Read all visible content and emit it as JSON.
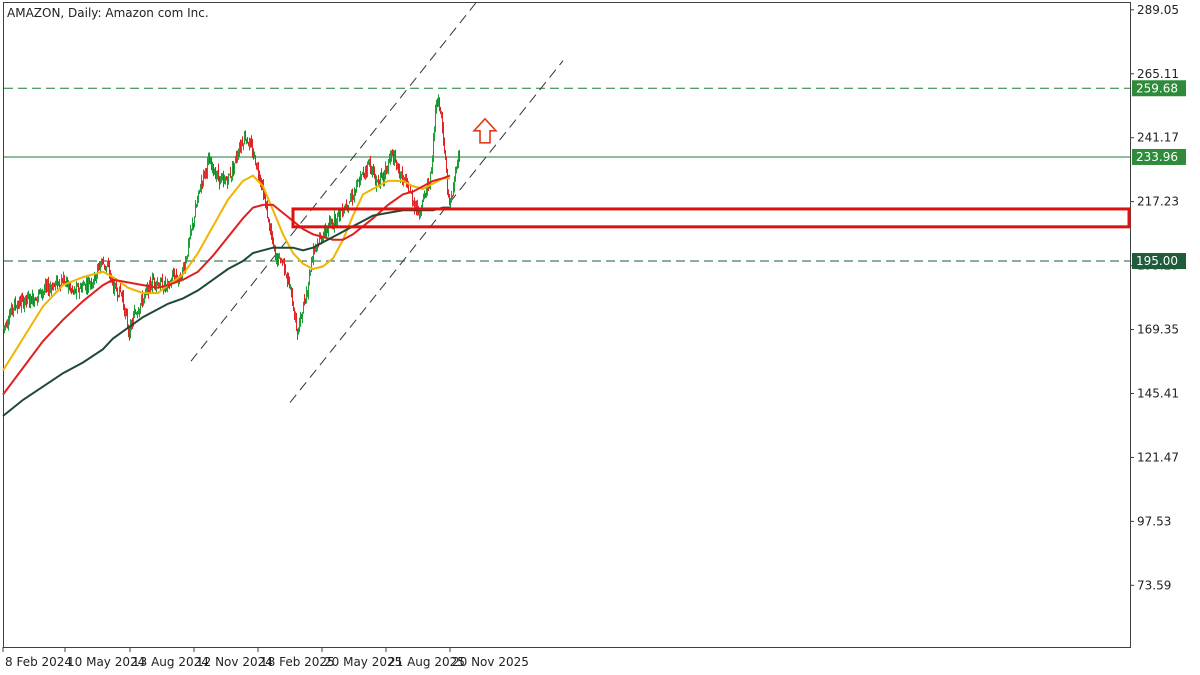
{
  "chart_data": {
    "type": "candlestick",
    "title": "AMAZON, Daily:  Amazon com Inc.",
    "y_ticks": [
      "289.05",
      "265.11",
      "241.17",
      "217.23",
      "193.29",
      "169.35",
      "145.41",
      "121.47",
      "97.53",
      "73.59"
    ],
    "y_tick_values": [
      289.05,
      265.11,
      241.17,
      217.23,
      193.29,
      169.35,
      145.41,
      121.47,
      97.53,
      73.59
    ],
    "ylim": [
      50.5,
      291.6
    ],
    "x_ticks": [
      "8 Feb 2024",
      "10 May 2024",
      "13 Aug 2024",
      "12 Nov 2024",
      "18 Feb 2025",
      "20 May 2025",
      "21 Aug 2025",
      "20 Nov 2025"
    ],
    "x_tick_index": [
      0,
      62,
      127,
      191,
      255,
      319,
      383,
      447
    ],
    "resistance_levels": [
      {
        "value": 259.68,
        "label": "259.68",
        "style": "dashed",
        "color": "#1e7b34"
      },
      {
        "value": 233.96,
        "label": "233.96",
        "style": "solid",
        "color": "#1e7b34"
      },
      {
        "value": 195.0,
        "label": "195.00",
        "style": "dashed",
        "color": "#1e5c3a"
      }
    ],
    "support_zone": {
      "upper": 214.5,
      "lower": 207.8,
      "from_index": 290,
      "color": "#e01010"
    },
    "channel_lines": [
      {
        "from": [
          188,
          157.5
        ],
        "to": [
          480,
          295.0
        ]
      },
      {
        "from": [
          287,
          142.0
        ],
        "to": [
          560,
          270.0
        ]
      }
    ],
    "moving_averages": [
      {
        "color": "#f0b400",
        "points": [
          [
            0,
            154
          ],
          [
            20,
            166
          ],
          [
            40,
            178
          ],
          [
            60,
            186
          ],
          [
            80,
            189
          ],
          [
            100,
            191
          ],
          [
            110,
            189
          ],
          [
            125,
            185
          ],
          [
            140,
            183
          ],
          [
            155,
            183
          ],
          [
            165,
            186
          ],
          [
            180,
            190
          ],
          [
            195,
            198
          ],
          [
            210,
            208
          ],
          [
            225,
            218
          ],
          [
            240,
            225
          ],
          [
            250,
            227
          ],
          [
            260,
            223
          ],
          [
            270,
            214
          ],
          [
            280,
            205
          ],
          [
            290,
            198
          ],
          [
            300,
            194
          ],
          [
            310,
            192
          ],
          [
            320,
            193
          ],
          [
            330,
            196
          ],
          [
            340,
            203
          ],
          [
            350,
            212
          ],
          [
            360,
            220
          ],
          [
            370,
            222
          ],
          [
            385,
            225
          ],
          [
            400,
            225
          ],
          [
            410,
            223
          ],
          [
            420,
            222
          ],
          [
            430,
            224
          ],
          [
            440,
            226
          ],
          [
            447,
            226
          ]
        ]
      },
      {
        "color": "#e02020",
        "points": [
          [
            0,
            145
          ],
          [
            20,
            155
          ],
          [
            40,
            165
          ],
          [
            60,
            173
          ],
          [
            80,
            180
          ],
          [
            100,
            186
          ],
          [
            110,
            188
          ],
          [
            125,
            187
          ],
          [
            140,
            186
          ],
          [
            155,
            185
          ],
          [
            165,
            186
          ],
          [
            180,
            188
          ],
          [
            195,
            191
          ],
          [
            210,
            197
          ],
          [
            225,
            204
          ],
          [
            240,
            211
          ],
          [
            250,
            215
          ],
          [
            260,
            216
          ],
          [
            270,
            216
          ],
          [
            280,
            213
          ],
          [
            290,
            210
          ],
          [
            300,
            207
          ],
          [
            310,
            205
          ],
          [
            320,
            204
          ],
          [
            330,
            203
          ],
          [
            340,
            203
          ],
          [
            350,
            205
          ],
          [
            360,
            208
          ],
          [
            370,
            211
          ],
          [
            385,
            216
          ],
          [
            400,
            220
          ],
          [
            410,
            221
          ],
          [
            420,
            223
          ],
          [
            430,
            225
          ],
          [
            440,
            226
          ],
          [
            447,
            227
          ]
        ]
      },
      {
        "color": "#1d4a35",
        "points": [
          [
            0,
            137
          ],
          [
            20,
            143
          ],
          [
            40,
            148
          ],
          [
            60,
            153
          ],
          [
            80,
            157
          ],
          [
            100,
            162
          ],
          [
            110,
            166
          ],
          [
            125,
            170
          ],
          [
            140,
            174
          ],
          [
            155,
            177
          ],
          [
            165,
            179
          ],
          [
            180,
            181
          ],
          [
            195,
            184
          ],
          [
            210,
            188
          ],
          [
            225,
            192
          ],
          [
            240,
            195
          ],
          [
            250,
            198
          ],
          [
            260,
            199
          ],
          [
            270,
            200
          ],
          [
            280,
            200
          ],
          [
            290,
            200
          ],
          [
            300,
            199
          ],
          [
            310,
            200
          ],
          [
            320,
            202
          ],
          [
            330,
            204
          ],
          [
            340,
            206
          ],
          [
            350,
            208
          ],
          [
            360,
            210
          ],
          [
            370,
            212
          ],
          [
            385,
            213
          ],
          [
            400,
            214
          ],
          [
            410,
            214
          ],
          [
            420,
            214
          ],
          [
            430,
            214
          ],
          [
            440,
            215
          ],
          [
            447,
            215
          ]
        ]
      }
    ],
    "price_path": [
      [
        0,
        170
      ],
      [
        10,
        178
      ],
      [
        20,
        180
      ],
      [
        30,
        181
      ],
      [
        40,
        184
      ],
      [
        50,
        186
      ],
      [
        60,
        188
      ],
      [
        70,
        183
      ],
      [
        80,
        186
      ],
      [
        90,
        188
      ],
      [
        98,
        195
      ],
      [
        105,
        192
      ],
      [
        110,
        185
      ],
      [
        118,
        183
      ],
      [
        122,
        175
      ],
      [
        126,
        168
      ],
      [
        131,
        175
      ],
      [
        140,
        181
      ],
      [
        150,
        188
      ],
      [
        158,
        186
      ],
      [
        165,
        185
      ],
      [
        170,
        190
      ],
      [
        176,
        188
      ],
      [
        182,
        195
      ],
      [
        190,
        210
      ],
      [
        198,
        225
      ],
      [
        205,
        232
      ],
      [
        212,
        228
      ],
      [
        220,
        224
      ],
      [
        228,
        228
      ],
      [
        236,
        238
      ],
      [
        242,
        242
      ],
      [
        250,
        235
      ],
      [
        258,
        225
      ],
      [
        266,
        208
      ],
      [
        272,
        196
      ],
      [
        280,
        195
      ],
      [
        288,
        182
      ],
      [
        294,
        168
      ],
      [
        298,
        175
      ],
      [
        304,
        185
      ],
      [
        310,
        200
      ],
      [
        320,
        205
      ],
      [
        330,
        210
      ],
      [
        340,
        215
      ],
      [
        350,
        220
      ],
      [
        360,
        228
      ],
      [
        366,
        232
      ],
      [
        372,
        225
      ],
      [
        380,
        226
      ],
      [
        388,
        235
      ],
      [
        396,
        228
      ],
      [
        405,
        222
      ],
      [
        415,
        213
      ],
      [
        422,
        220
      ],
      [
        428,
        228
      ],
      [
        433,
        257
      ],
      [
        438,
        250
      ],
      [
        442,
        232
      ],
      [
        446,
        215
      ],
      [
        450,
        222
      ],
      [
        453,
        232
      ],
      [
        456,
        234
      ]
    ],
    "up_arrow": {
      "index": 470,
      "value": 243
    }
  }
}
